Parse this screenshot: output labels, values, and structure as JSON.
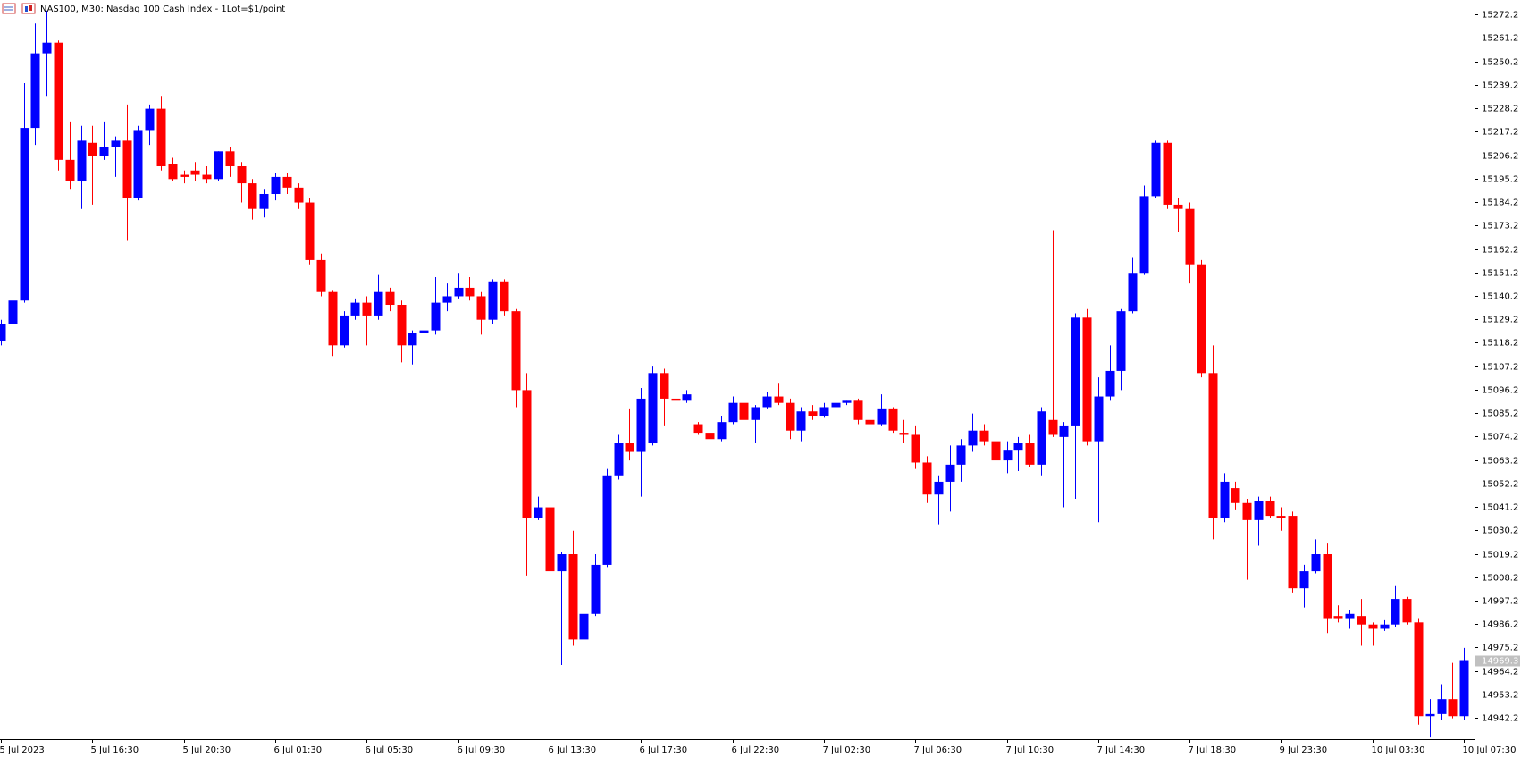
{
  "chart_data": {
    "type": "candlestick",
    "title": "NAS100, M30:  Nasdaq 100 Cash Index - 1Lot=$1/point",
    "up_color": "#0000ff",
    "down_color": "#ff0000",
    "current_price": 14969.3,
    "ylim": [
      14932.2,
      15279.0
    ],
    "yticks": [
      15272.2,
      15261.2,
      15250.2,
      15239.2,
      15228.2,
      15217.2,
      15206.2,
      15195.2,
      15184.2,
      15173.2,
      15162.2,
      15151.2,
      15140.2,
      15129.2,
      15118.2,
      15107.2,
      15096.2,
      15085.2,
      15074.2,
      15063.2,
      15052.2,
      15041.2,
      15030.2,
      15019.2,
      15008.2,
      14997.2,
      14986.2,
      14975.2,
      14964.2,
      14953.2,
      14942.2
    ],
    "categories": [
      "5 Jul 2023",
      null,
      null,
      null,
      null,
      null,
      null,
      null,
      "5 Jul 16:30",
      null,
      null,
      null,
      null,
      null,
      null,
      null,
      "5 Jul 20:30",
      null,
      null,
      null,
      null,
      null,
      null,
      null,
      "6 Jul 01:30",
      null,
      null,
      null,
      null,
      null,
      null,
      null,
      "6 Jul 05:30",
      null,
      null,
      null,
      null,
      null,
      null,
      null,
      "6 Jul 09:30",
      null,
      null,
      null,
      null,
      null,
      null,
      null,
      "6 Jul 13:30",
      null,
      null,
      null,
      null,
      null,
      null,
      null,
      "6 Jul 17:30",
      null,
      null,
      null,
      null,
      null,
      null,
      null,
      "6 Jul 22:30",
      null,
      null,
      null,
      null,
      null,
      null,
      null,
      "7 Jul 02:30",
      null,
      null,
      null,
      null,
      null,
      null,
      null,
      "7 Jul 06:30",
      null,
      null,
      null,
      null,
      null,
      null,
      null,
      "7 Jul 10:30",
      null,
      null,
      null,
      null,
      null,
      null,
      null,
      "7 Jul 14:30",
      null,
      null,
      null,
      null,
      null,
      null,
      null,
      "7 Jul 18:30",
      null,
      null,
      null,
      null,
      null,
      null,
      null,
      "9 Jul 23:30",
      null,
      null,
      null,
      null,
      null,
      null,
      null,
      "10 Jul 03:30",
      null,
      null,
      null,
      null,
      null,
      null,
      null,
      "10 Jul 07:30"
    ],
    "open": [
      15119,
      15127,
      15138,
      15219,
      15254,
      15259,
      15204,
      15194,
      15212,
      15206,
      15210,
      15213,
      15186,
      15218,
      15228,
      15202,
      15197,
      15199,
      15197,
      15195,
      15208,
      15201,
      15193,
      15181,
      15188,
      15196,
      15191,
      15184,
      15157,
      15142,
      15117,
      15131,
      15137,
      15131,
      15142,
      15136,
      15117,
      15123,
      15124,
      15137,
      15140,
      15144,
      15140,
      15129,
      15147,
      15133,
      15096,
      15036,
      15041,
      15011,
      15019,
      14979,
      14991,
      15014,
      15056,
      15071,
      15067,
      15071,
      15104,
      15092,
      15091,
      15080,
      15076,
      15073,
      15081,
      15090,
      15082,
      15088,
      15093,
      15090,
      15077,
      15086,
      15084,
      15088,
      15090,
      15091,
      15082,
      15080,
      15087,
      15076,
      15075,
      15062,
      15047,
      15053,
      15061,
      15070,
      15077,
      15072,
      15063,
      15068,
      15071,
      15061,
      15082,
      15074,
      15079,
      15130,
      15072,
      15093,
      15105,
      15133,
      15151,
      15187,
      15212,
      15183,
      15181,
      15155,
      15104,
      15036,
      15050,
      15043,
      15035,
      15044,
      15037,
      15037,
      15003,
      15011,
      15019,
      14990,
      14989,
      14990,
      14986,
      14984,
      14986,
      14998,
      14987,
      14943,
      14944,
      14951,
      14943
    ],
    "high": [
      15129,
      15140,
      15240,
      15268,
      15274,
      15260,
      15222,
      15220,
      15220,
      15222,
      15215,
      15230,
      15220,
      15230,
      15234,
      15205,
      15199,
      15203,
      15201,
      15208,
      15210,
      15203,
      15195,
      15190,
      15198,
      15198,
      15193,
      15186,
      15160,
      15143,
      15133,
      15139,
      15140,
      15150,
      15144,
      15138,
      15124,
      15125,
      15149,
      15146,
      15151,
      15149,
      15142,
      15148,
      15148,
      15134,
      15104,
      15046,
      15060,
      15020,
      15030,
      15011,
      15019,
      15059,
      15075,
      15087,
      15097,
      15107,
      15106,
      15102,
      15096,
      15081,
      15077,
      15084,
      15093,
      15092,
      15089,
      15095,
      15099,
      15092,
      15088,
      15089,
      15090,
      15091,
      15091,
      15092,
      15083,
      15094,
      15088,
      15082,
      15079,
      15065,
      15056,
      15070,
      15073,
      15085,
      15080,
      15074,
      15072,
      15074,
      15075,
      15088,
      15171,
      15081,
      15132,
      15134,
      15102,
      15117,
      15134,
      15158,
      15192,
      15213,
      15213,
      15186,
      15184,
      15157,
      15117,
      15057,
      15053,
      15045,
      15046,
      15046,
      15041,
      15039,
      15014,
      15026,
      15024,
      14995,
      14993,
      14998,
      14987,
      14988,
      15004,
      14999,
      14989,
      14951,
      14958,
      14968,
      14975
    ],
    "low": [
      15117,
      15124,
      15137,
      15211,
      15234,
      15199,
      15190,
      15181,
      15183,
      15204,
      15196,
      15166,
      15185,
      15211,
      15199,
      15194,
      15193,
      15194,
      15193,
      15194,
      15196,
      15184,
      15176,
      15177,
      15185,
      15188,
      15181,
      15155,
      15140,
      15112,
      15116,
      15129,
      15117,
      15129,
      15133,
      15109,
      15108,
      15122,
      15122,
      15133,
      15139,
      15138,
      15122,
      15127,
      15131,
      15088,
      15009,
      15035,
      14986,
      14967,
      14976,
      14969,
      14990,
      15013,
      15054,
      15063,
      15046,
      15070,
      15079,
      15089,
      15090,
      15075,
      15070,
      15072,
      15080,
      15080,
      15071,
      15087,
      15089,
      15073,
      15072,
      15082,
      15083,
      15087,
      15089,
      15080,
      15079,
      15079,
      15076,
      15071,
      15059,
      15043,
      15033,
      15039,
      15053,
      15067,
      15070,
      15055,
      15057,
      15058,
      15060,
      15056,
      15074,
      15041,
      15045,
      15070,
      15034,
      15091,
      15096,
      15132,
      15150,
      15186,
      15181,
      15170,
      15146,
      15102,
      15026,
      15034,
      15040,
      15007,
      15023,
      15036,
      15030,
      15001,
      14994,
      15010,
      14982,
      14987,
      14984,
      14976,
      14976,
      14983,
      14985,
      14986,
      14939,
      14933,
      14941,
      14942,
      14941
    ],
    "close": [
      15127,
      15138,
      15219,
      15254,
      15259,
      15204,
      15194,
      15213,
      15206,
      15210,
      15213,
      15186,
      15218,
      15228,
      15201,
      15195,
      15196,
      15197,
      15195,
      15208,
      15201,
      15193,
      15181,
      15188,
      15196,
      15191,
      15184,
      15157,
      15142,
      15117,
      15131,
      15137,
      15131,
      15142,
      15136,
      15117,
      15123,
      15124,
      15137,
      15140,
      15144,
      15140,
      15129,
      15147,
      15133,
      15096,
      15036,
      15041,
      15011,
      15019,
      14979,
      14991,
      15014,
      15056,
      15071,
      15067,
      15092,
      15104,
      15092,
      15091,
      15094,
      15076,
      15073,
      15081,
      15090,
      15082,
      15088,
      15093,
      15090,
      15077,
      15086,
      15084,
      15088,
      15090,
      15091,
      15082,
      15080,
      15087,
      15077,
      15075,
      15062,
      15047,
      15053,
      15061,
      15070,
      15077,
      15072,
      15063,
      15068,
      15071,
      15061,
      15086,
      15075,
      15079,
      15130,
      15072,
      15093,
      15105,
      15133,
      15151,
      15187,
      15212,
      15183,
      15181,
      15155,
      15104,
      15036,
      15053,
      15043,
      15035,
      15044,
      15037,
      15036,
      15003,
      15011,
      15019,
      14989,
      14989,
      14991,
      14986,
      14984,
      14986,
      14998,
      14987,
      14943,
      14944,
      14951,
      14943,
      14969.3
    ]
  }
}
